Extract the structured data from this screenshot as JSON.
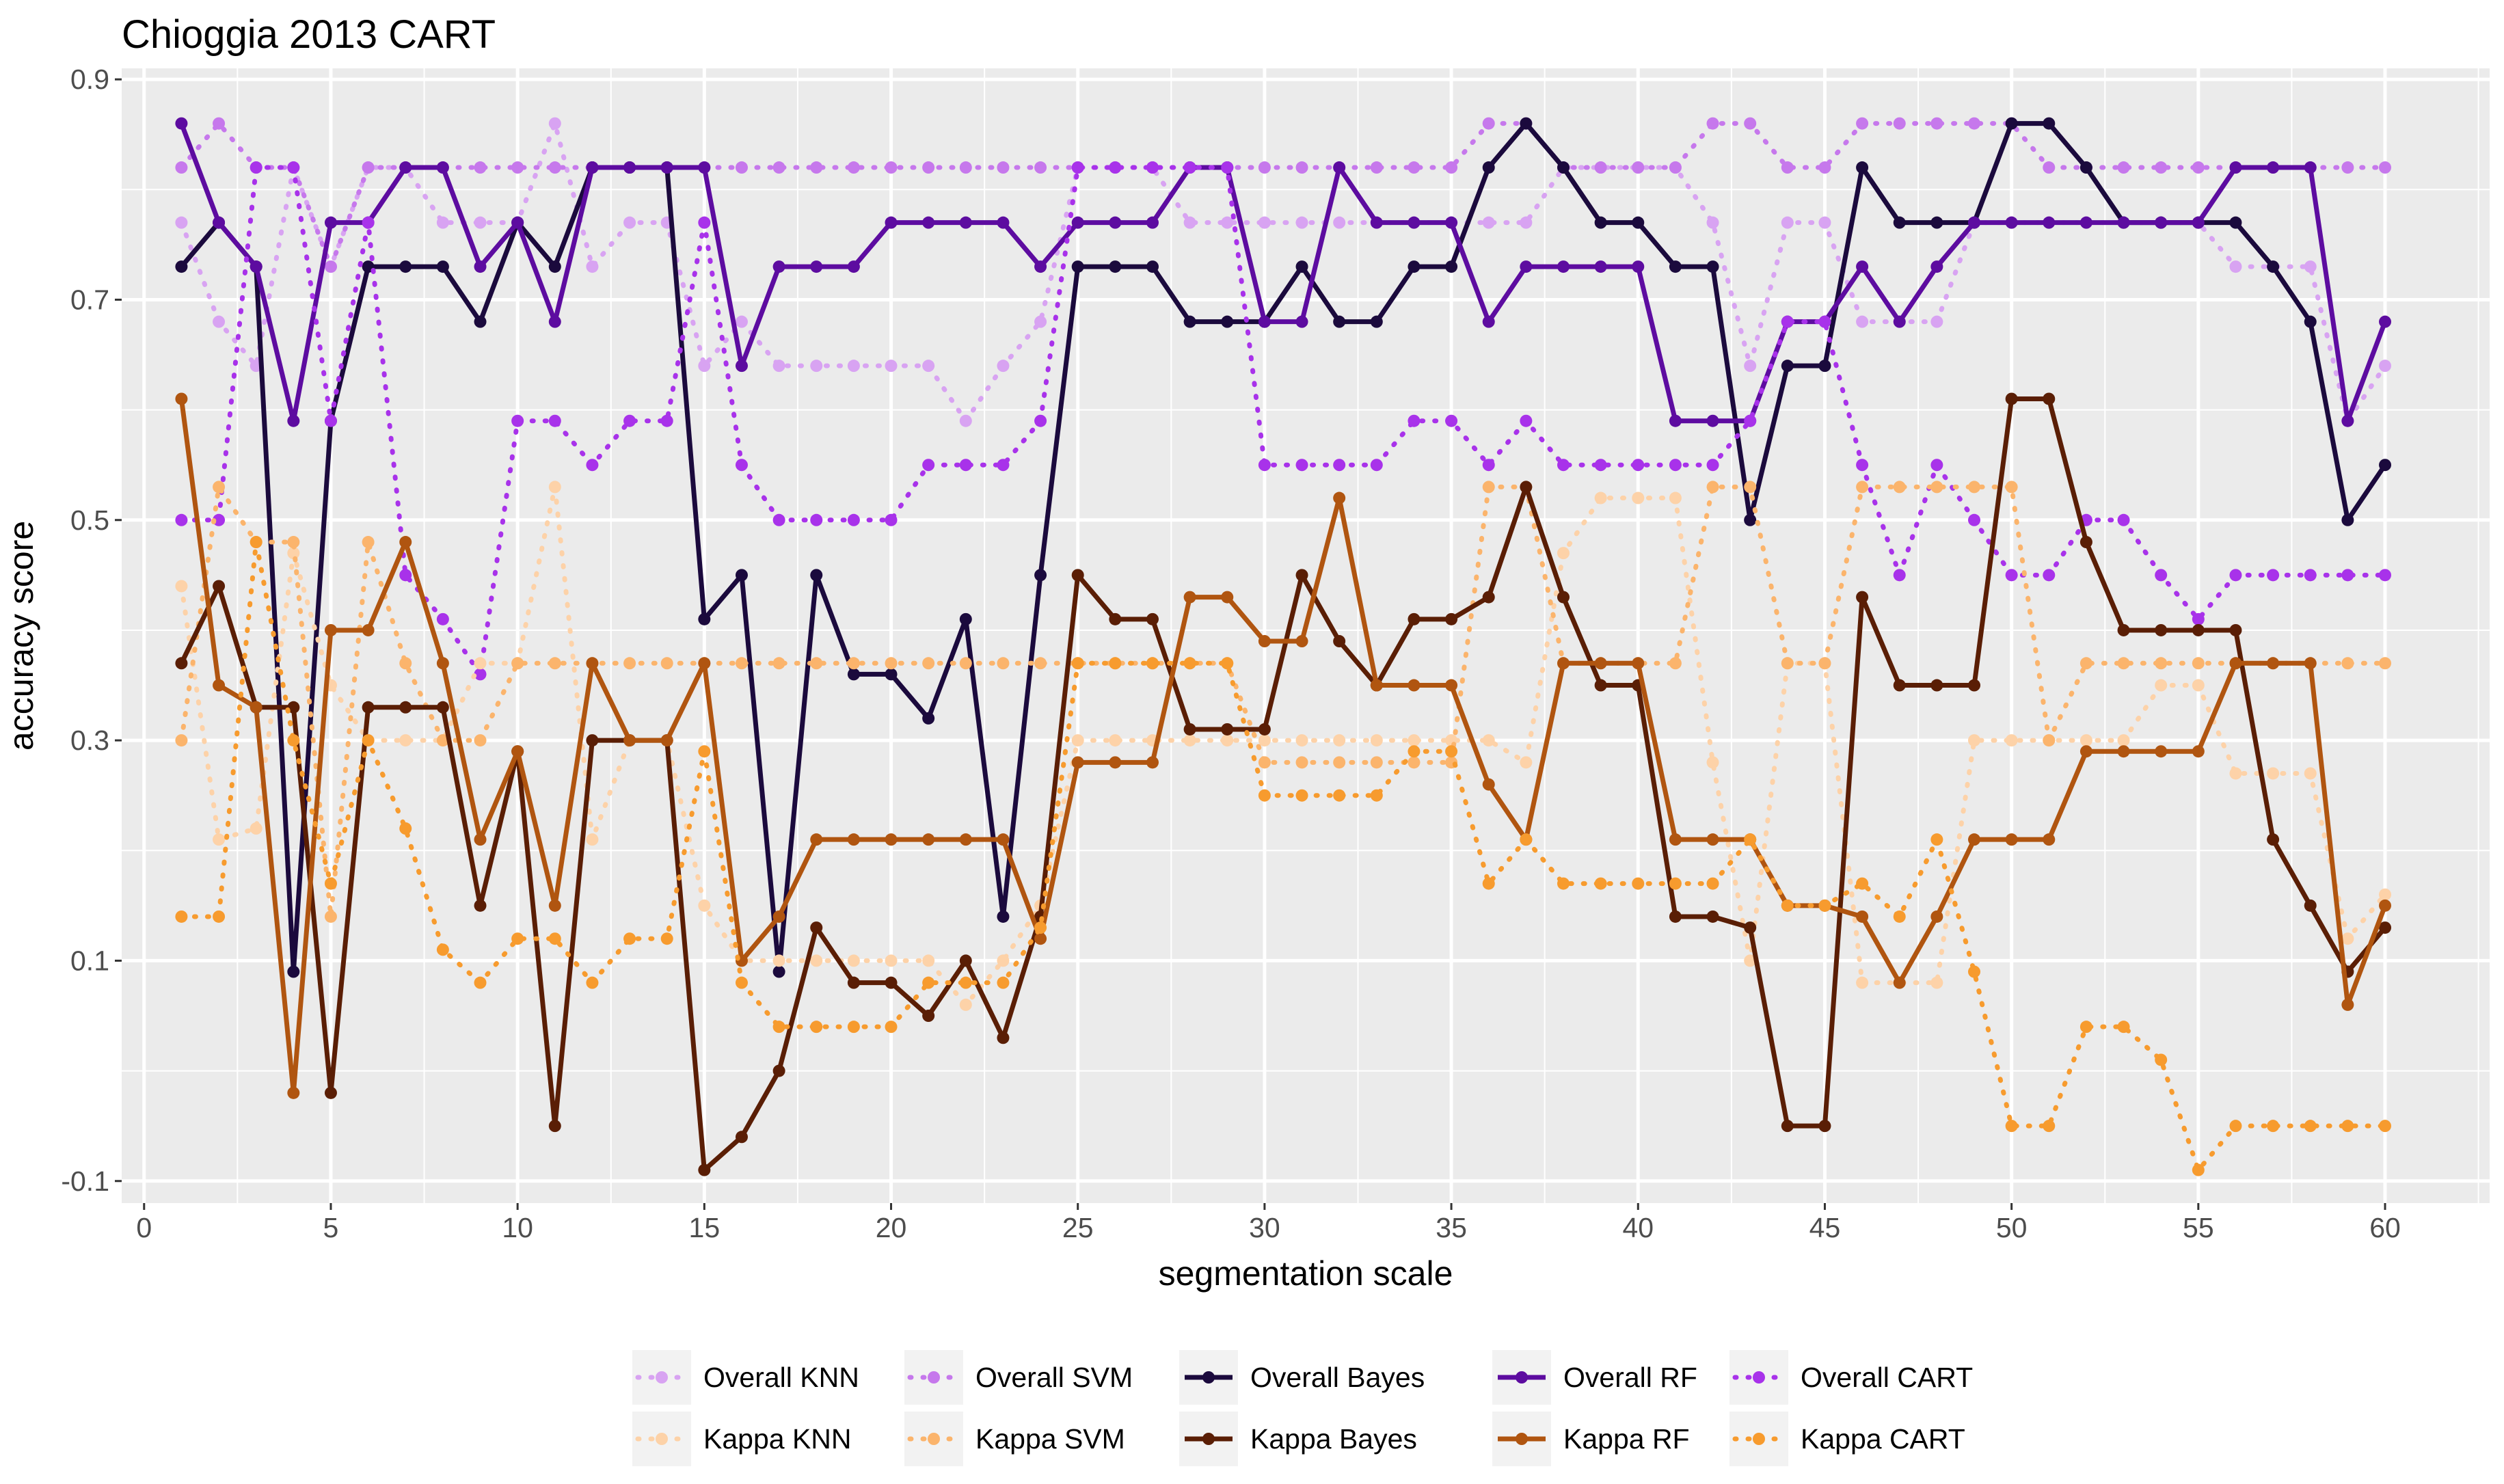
{
  "chart_data": {
    "type": "line",
    "title": "Chioggia 2013 CART",
    "xlabel": "segmentation scale",
    "ylabel": "accuracy score",
    "xlim": [
      -0.6,
      62.8
    ],
    "ylim": [
      -0.12,
      0.91
    ],
    "x_ticks": [
      0,
      5,
      10,
      15,
      20,
      25,
      30,
      35,
      40,
      45,
      50,
      55,
      60
    ],
    "y_ticks": [
      -0.1,
      0.1,
      0.3,
      0.5,
      0.7,
      0.9
    ],
    "y_tick_labels": [
      "-0.1",
      "0.1",
      "0.3",
      "0.5",
      "0.7",
      "0.9"
    ],
    "legend_position": "bottom",
    "x": [
      1,
      2,
      3,
      4,
      5,
      6,
      7,
      8,
      9,
      10,
      11,
      12,
      13,
      14,
      15,
      16,
      17,
      18,
      19,
      20,
      21,
      22,
      23,
      24,
      25,
      26,
      27,
      28,
      29,
      30,
      31,
      32,
      33,
      34,
      35,
      36,
      37,
      38,
      39,
      40,
      41,
      42,
      43,
      44,
      45,
      46,
      47,
      48,
      49,
      50,
      51,
      52,
      53,
      54,
      55,
      56,
      57,
      58,
      59,
      60
    ],
    "series": [
      {
        "name": "Overall KNN",
        "color": "#D8A3F2",
        "style": "dotted",
        "values": [
          0.77,
          0.68,
          0.64,
          0.82,
          0.73,
          0.82,
          0.82,
          0.77,
          0.77,
          0.77,
          0.86,
          0.73,
          0.77,
          0.77,
          0.64,
          0.68,
          0.64,
          0.64,
          0.64,
          0.64,
          0.64,
          0.59,
          0.64,
          0.68,
          0.82,
          0.82,
          0.82,
          0.77,
          0.77,
          0.77,
          0.77,
          0.77,
          0.77,
          0.77,
          0.77,
          0.77,
          0.77,
          0.82,
          0.82,
          0.82,
          0.82,
          0.77,
          0.64,
          0.77,
          0.77,
          0.68,
          0.68,
          0.68,
          0.77,
          0.77,
          0.77,
          0.77,
          0.77,
          0.77,
          0.77,
          0.73,
          0.73,
          0.73,
          0.59,
          0.64
        ]
      },
      {
        "name": "Overall SVM",
        "color": "#C678EC",
        "style": "dotted",
        "values": [
          0.82,
          0.86,
          0.82,
          0.82,
          0.73,
          0.82,
          0.82,
          0.82,
          0.82,
          0.82,
          0.82,
          0.82,
          0.82,
          0.82,
          0.82,
          0.82,
          0.82,
          0.82,
          0.82,
          0.82,
          0.82,
          0.82,
          0.82,
          0.82,
          0.82,
          0.82,
          0.82,
          0.82,
          0.82,
          0.82,
          0.82,
          0.82,
          0.82,
          0.82,
          0.82,
          0.86,
          0.86,
          0.82,
          0.82,
          0.82,
          0.82,
          0.86,
          0.86,
          0.82,
          0.82,
          0.86,
          0.86,
          0.86,
          0.86,
          0.86,
          0.82,
          0.82,
          0.82,
          0.82,
          0.82,
          0.82,
          0.82,
          0.82,
          0.82,
          0.82
        ]
      },
      {
        "name": "Overall Bayes",
        "color": "#1B0A3D",
        "style": "solid",
        "values": [
          0.73,
          0.77,
          0.73,
          0.09,
          0.59,
          0.73,
          0.73,
          0.73,
          0.68,
          0.77,
          0.73,
          0.82,
          0.82,
          0.82,
          0.41,
          0.45,
          0.09,
          0.45,
          0.36,
          0.36,
          0.32,
          0.41,
          0.14,
          0.45,
          0.73,
          0.73,
          0.73,
          0.68,
          0.68,
          0.68,
          0.73,
          0.68,
          0.68,
          0.73,
          0.73,
          0.82,
          0.86,
          0.82,
          0.77,
          0.77,
          0.73,
          0.73,
          0.5,
          0.64,
          0.64,
          0.82,
          0.77,
          0.77,
          0.77,
          0.86,
          0.86,
          0.82,
          0.77,
          0.77,
          0.77,
          0.77,
          0.73,
          0.68,
          0.5,
          0.55
        ]
      },
      {
        "name": "Overall RF",
        "color": "#5D0CA0",
        "style": "solid",
        "values": [
          0.86,
          0.77,
          0.73,
          0.59,
          0.77,
          0.77,
          0.82,
          0.82,
          0.73,
          0.77,
          0.68,
          0.82,
          0.82,
          0.82,
          0.82,
          0.64,
          0.73,
          0.73,
          0.73,
          0.77,
          0.77,
          0.77,
          0.77,
          0.73,
          0.77,
          0.77,
          0.77,
          0.82,
          0.82,
          0.68,
          0.68,
          0.82,
          0.77,
          0.77,
          0.77,
          0.68,
          0.73,
          0.73,
          0.73,
          0.73,
          0.59,
          0.59,
          0.59,
          0.68,
          0.68,
          0.73,
          0.68,
          0.73,
          0.77,
          0.77,
          0.77,
          0.77,
          0.77,
          0.77,
          0.77,
          0.82,
          0.82,
          0.82,
          0.59,
          0.68
        ]
      },
      {
        "name": "Overall CART",
        "color": "#A832EA",
        "style": "dotted",
        "values": [
          0.5,
          0.5,
          0.82,
          0.82,
          0.59,
          0.77,
          0.45,
          0.41,
          0.36,
          0.59,
          0.59,
          0.55,
          0.59,
          0.59,
          0.77,
          0.55,
          0.5,
          0.5,
          0.5,
          0.5,
          0.55,
          0.55,
          0.55,
          0.59,
          0.82,
          0.82,
          0.82,
          0.82,
          0.82,
          0.55,
          0.55,
          0.55,
          0.55,
          0.59,
          0.59,
          0.55,
          0.59,
          0.55,
          0.55,
          0.55,
          0.55,
          0.55,
          0.59,
          0.68,
          0.68,
          0.55,
          0.45,
          0.55,
          0.5,
          0.45,
          0.45,
          0.5,
          0.5,
          0.45,
          0.41,
          0.45,
          0.45,
          0.45,
          0.45,
          0.45
        ]
      },
      {
        "name": "Kappa KNN",
        "color": "#FDD2A8",
        "style": "dotted",
        "values": [
          0.44,
          0.21,
          0.22,
          0.47,
          0.35,
          0.3,
          0.3,
          0.3,
          0.37,
          0.37,
          0.53,
          0.21,
          0.3,
          0.3,
          0.15,
          0.1,
          0.1,
          0.1,
          0.1,
          0.1,
          0.1,
          0.06,
          0.1,
          0.15,
          0.3,
          0.3,
          0.3,
          0.3,
          0.3,
          0.3,
          0.3,
          0.3,
          0.3,
          0.3,
          0.3,
          0.3,
          0.28,
          0.47,
          0.52,
          0.52,
          0.52,
          0.28,
          0.1,
          0.37,
          0.37,
          0.08,
          0.08,
          0.08,
          0.3,
          0.3,
          0.3,
          0.3,
          0.3,
          0.35,
          0.35,
          0.27,
          0.27,
          0.27,
          0.12,
          0.16
        ]
      },
      {
        "name": "Kappa SVM",
        "color": "#FBB46C",
        "style": "dotted",
        "values": [
          0.3,
          0.53,
          0.48,
          0.48,
          0.14,
          0.48,
          0.37,
          0.3,
          0.3,
          0.37,
          0.37,
          0.37,
          0.37,
          0.37,
          0.37,
          0.37,
          0.37,
          0.37,
          0.37,
          0.37,
          0.37,
          0.37,
          0.37,
          0.37,
          0.37,
          0.37,
          0.37,
          0.37,
          0.37,
          0.28,
          0.28,
          0.28,
          0.28,
          0.28,
          0.28,
          0.53,
          0.53,
          0.37,
          0.37,
          0.37,
          0.37,
          0.53,
          0.53,
          0.37,
          0.37,
          0.53,
          0.53,
          0.53,
          0.53,
          0.53,
          0.3,
          0.37,
          0.37,
          0.37,
          0.37,
          0.37,
          0.37,
          0.37,
          0.37,
          0.37
        ]
      },
      {
        "name": "Kappa Bayes",
        "color": "#5A1E05",
        "style": "solid",
        "values": [
          0.37,
          0.44,
          0.33,
          0.33,
          -0.02,
          0.33,
          0.33,
          0.33,
          0.15,
          0.29,
          -0.05,
          0.3,
          0.3,
          0.3,
          -0.09,
          -0.06,
          0.0,
          0.13,
          0.08,
          0.08,
          0.05,
          0.1,
          0.03,
          0.14,
          0.45,
          0.41,
          0.41,
          0.31,
          0.31,
          0.31,
          0.45,
          0.39,
          0.35,
          0.41,
          0.41,
          0.43,
          0.53,
          0.43,
          0.35,
          0.35,
          0.14,
          0.14,
          0.13,
          -0.05,
          -0.05,
          0.43,
          0.35,
          0.35,
          0.35,
          0.61,
          0.61,
          0.48,
          0.4,
          0.4,
          0.4,
          0.4,
          0.21,
          0.15,
          0.09,
          0.13
        ]
      },
      {
        "name": "Kappa RF",
        "color": "#B05510",
        "style": "solid",
        "values": [
          0.61,
          0.35,
          0.33,
          -0.02,
          0.4,
          0.4,
          0.48,
          0.37,
          0.21,
          0.29,
          0.15,
          0.37,
          0.3,
          0.3,
          0.37,
          0.1,
          0.14,
          0.21,
          0.21,
          0.21,
          0.21,
          0.21,
          0.21,
          0.12,
          0.28,
          0.28,
          0.28,
          0.43,
          0.43,
          0.39,
          0.39,
          0.52,
          0.35,
          0.35,
          0.35,
          0.26,
          0.21,
          0.37,
          0.37,
          0.37,
          0.21,
          0.21,
          0.21,
          0.15,
          0.15,
          0.14,
          0.08,
          0.14,
          0.21,
          0.21,
          0.21,
          0.29,
          0.29,
          0.29,
          0.29,
          0.37,
          0.37,
          0.37,
          0.06,
          0.15
        ]
      },
      {
        "name": "Kappa CART",
        "color": "#F79B2E",
        "style": "dotted",
        "values": [
          0.14,
          0.14,
          0.48,
          0.3,
          0.17,
          0.3,
          0.22,
          0.11,
          0.08,
          0.12,
          0.12,
          0.08,
          0.12,
          0.12,
          0.29,
          0.08,
          0.04,
          0.04,
          0.04,
          0.04,
          0.08,
          0.08,
          0.08,
          0.13,
          0.37,
          0.37,
          0.37,
          0.37,
          0.37,
          0.25,
          0.25,
          0.25,
          0.25,
          0.29,
          0.29,
          0.17,
          0.21,
          0.17,
          0.17,
          0.17,
          0.17,
          0.17,
          0.21,
          0.15,
          0.15,
          0.17,
          0.14,
          0.21,
          0.09,
          -0.05,
          -0.05,
          0.04,
          0.04,
          0.01,
          -0.09,
          -0.05,
          -0.05,
          -0.05,
          -0.05,
          -0.05
        ]
      }
    ]
  }
}
